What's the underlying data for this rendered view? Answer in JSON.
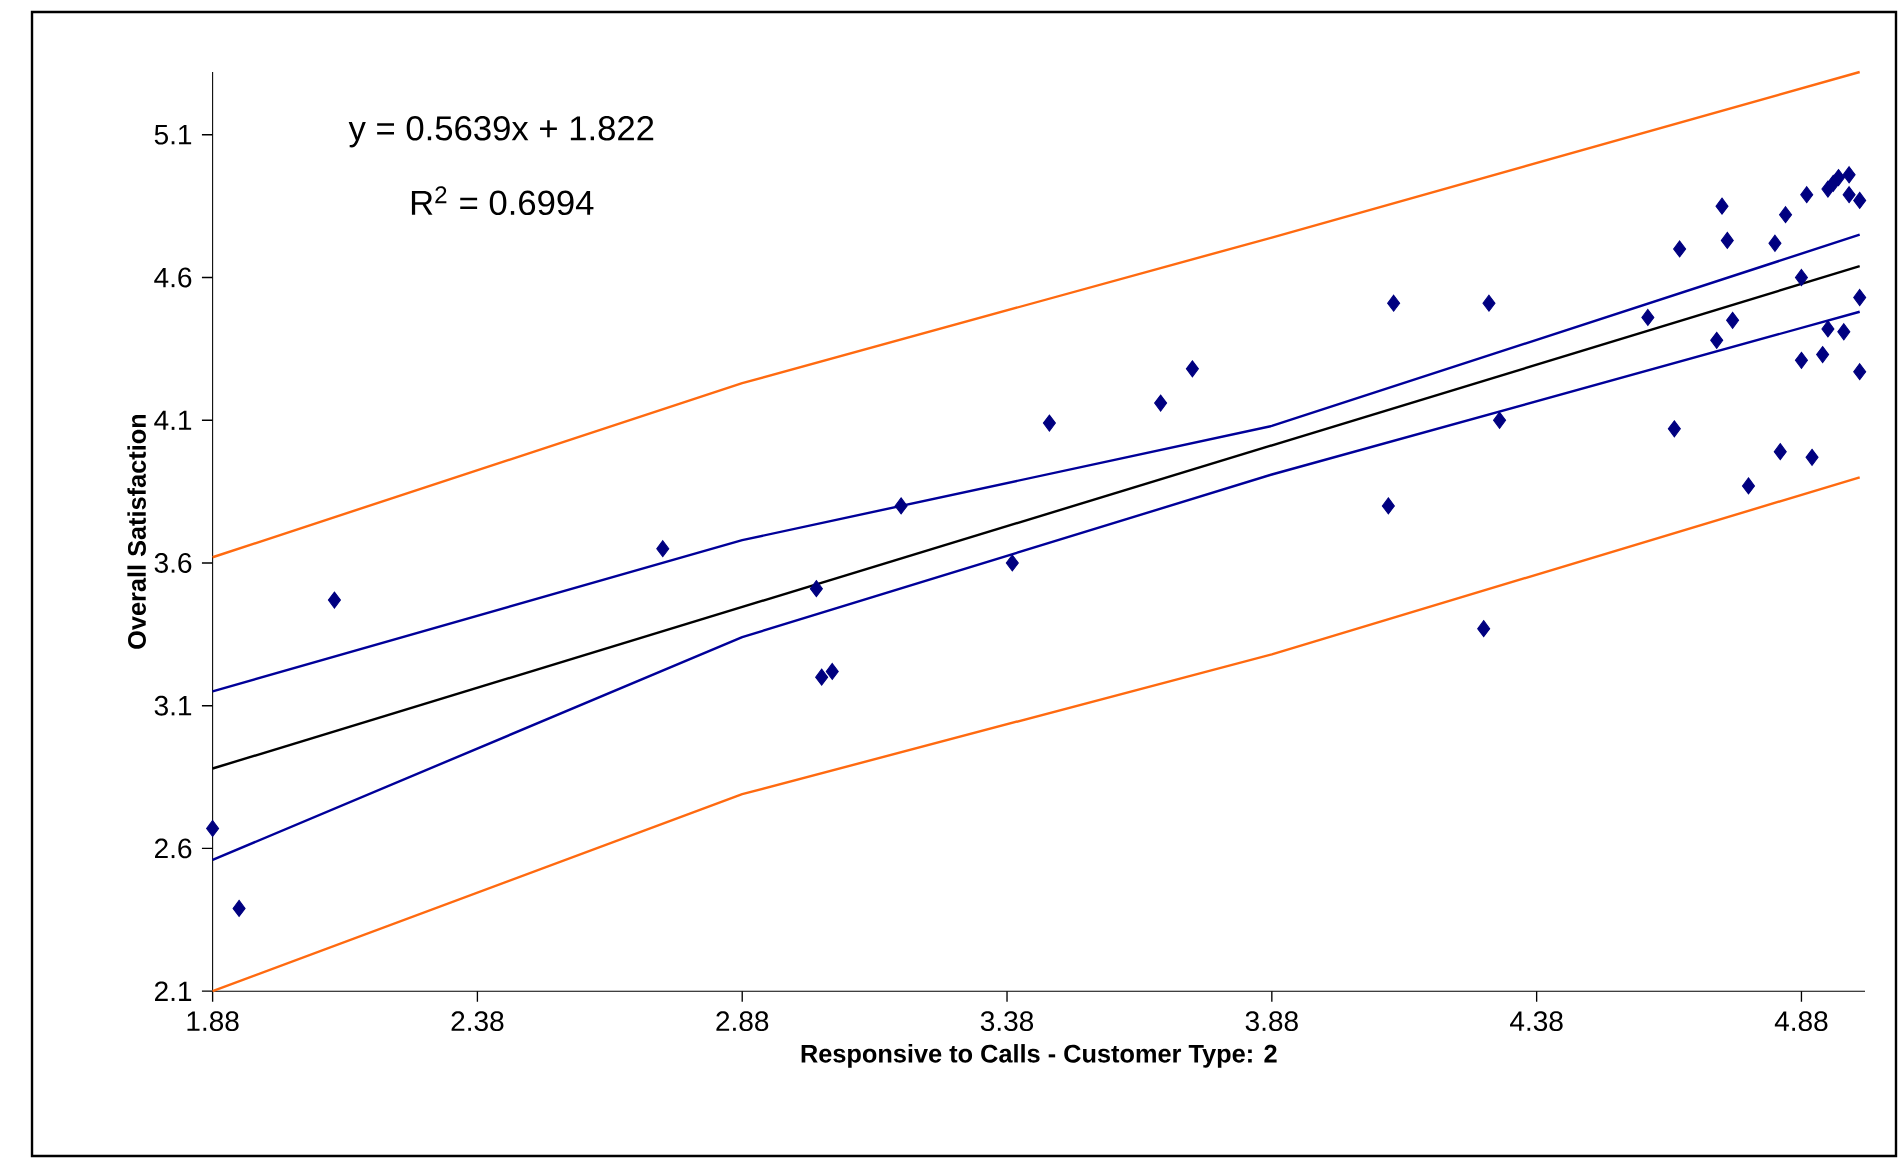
{
  "chart_data": {
    "type": "scatter",
    "xlabel": "Responsive to Calls - Customer Type: 2",
    "ylabel": "Overall Satisfaction",
    "annotations": [
      "y = 0.5639x + 1.822",
      "R$^{2}$ = 0.6994"
    ],
    "xlim": [
      1.88,
      5.0
    ],
    "ylim": [
      2.1,
      5.32
    ],
    "xticks": [
      1.88,
      2.38,
      2.88,
      3.38,
      3.88,
      4.38,
      4.88
    ],
    "yticks": [
      2.1,
      2.6,
      3.1,
      3.6,
      4.1,
      4.6,
      5.1
    ],
    "series": [
      {
        "marker": "diamond",
        "color": "#000080",
        "x": [
          1.88,
          1.93,
          2.11,
          2.73,
          3.02,
          3.03,
          3.05,
          3.18,
          3.39,
          3.46,
          3.67,
          3.73,
          4.1,
          4.11,
          4.29,
          4.28,
          4.31,
          4.59,
          4.64,
          4.65,
          4.72,
          4.73,
          4.74,
          4.75,
          4.78,
          4.83,
          4.84,
          4.85,
          4.88,
          4.88,
          4.89,
          4.9,
          4.92,
          4.93,
          4.93,
          4.94,
          4.95,
          4.97,
          4.96,
          4.97,
          4.99,
          4.99,
          4.99
        ],
        "values": [
          2.67,
          2.39,
          3.47,
          3.65,
          3.51,
          3.2,
          3.22,
          3.8,
          3.6,
          4.09,
          4.16,
          4.28,
          3.8,
          4.51,
          4.51,
          3.37,
          4.1,
          4.46,
          4.07,
          4.7,
          4.38,
          4.85,
          4.73,
          4.45,
          3.87,
          4.72,
          3.99,
          4.82,
          4.6,
          4.31,
          4.89,
          3.97,
          4.33,
          4.42,
          4.91,
          4.93,
          4.95,
          4.96,
          4.41,
          4.89,
          4.87,
          4.53,
          4.27
        ]
      },
      {
        "type": "line",
        "marker": "none",
        "color": "#000000",
        "x": [
          1.88,
          4.99
        ],
        "values": [
          2.88,
          4.64
        ]
      },
      {
        "type": "line",
        "marker": "none",
        "color": "#000099",
        "x": [
          1.88,
          2.88,
          3.88,
          4.99
        ],
        "values": [
          3.15,
          3.68,
          4.08,
          4.75
        ]
      },
      {
        "type": "line",
        "marker": "none",
        "color": "#000099",
        "x": [
          1.88,
          2.88,
          3.88,
          4.99
        ],
        "values": [
          2.56,
          3.34,
          3.91,
          4.48
        ]
      },
      {
        "type": "line",
        "marker": "none",
        "color": "#ff6a10",
        "x": [
          1.88,
          2.88,
          3.88,
          4.99
        ],
        "values": [
          3.62,
          4.23,
          4.74,
          5.32
        ]
      },
      {
        "type": "line",
        "marker": "none",
        "color": "#ff6a10",
        "x": [
          1.88,
          2.88,
          3.88,
          4.99
        ],
        "values": [
          2.1,
          2.79,
          3.28,
          3.9
        ]
      }
    ]
  }
}
